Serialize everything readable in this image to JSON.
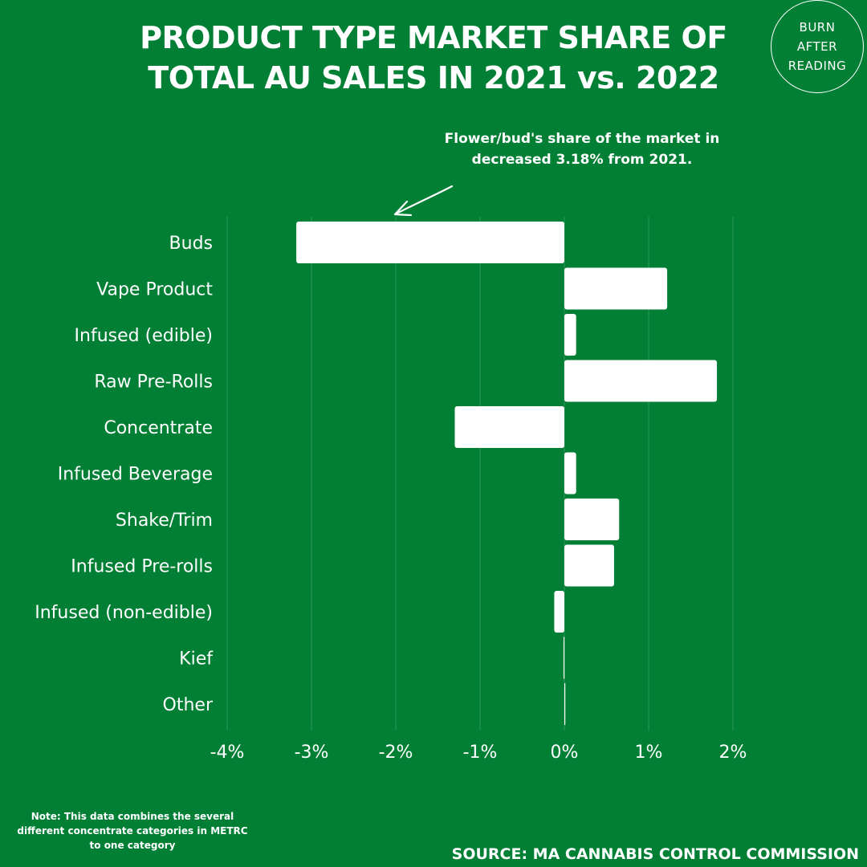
{
  "title_line1": "PRODUCT TYPE MARKET SHARE OF",
  "title_line2": "TOTAL AU SALES IN 2021 vs. 2022",
  "logo": {
    "line1": "BURN",
    "line2": "AFTER",
    "line3": "READING"
  },
  "annotation": {
    "line1": "Flower/bud's share of the market in",
    "line2": "decreased  3.18% from 2021."
  },
  "note": {
    "line1": "Note: This data combines the several",
    "line2": "different concentrate categories in METRC",
    "line3": "to one category"
  },
  "source": "SOURCE: MA CANNABIS CONTROL COMMISSION",
  "colors": {
    "background": "#007f35",
    "bar": "#ffffff",
    "text": "#ffffff",
    "grid": "#2f9a56"
  },
  "chart_data": {
    "type": "bar",
    "orientation": "horizontal",
    "categories": [
      "Buds",
      "Vape Product",
      "Infused (edible)",
      "Raw Pre-Rolls",
      "Concentrate",
      "Infused Beverage",
      "Shake/Trim",
      "Infused Pre-rolls",
      "Infused (non-edible)",
      "Kief",
      "Other"
    ],
    "values": [
      -3.18,
      1.22,
      0.14,
      1.81,
      -1.3,
      0.14,
      0.65,
      0.59,
      -0.12,
      -0.01,
      0.01
    ],
    "unit": "%",
    "xlim": [
      -4,
      2
    ],
    "xticks": [
      -4,
      -3,
      -2,
      -1,
      0,
      1,
      2
    ],
    "xtick_labels": [
      "-4%",
      "-3%",
      "-2%",
      "-1%",
      "0%",
      "1%",
      "2%"
    ],
    "grid": "vertical",
    "legend": "none"
  }
}
